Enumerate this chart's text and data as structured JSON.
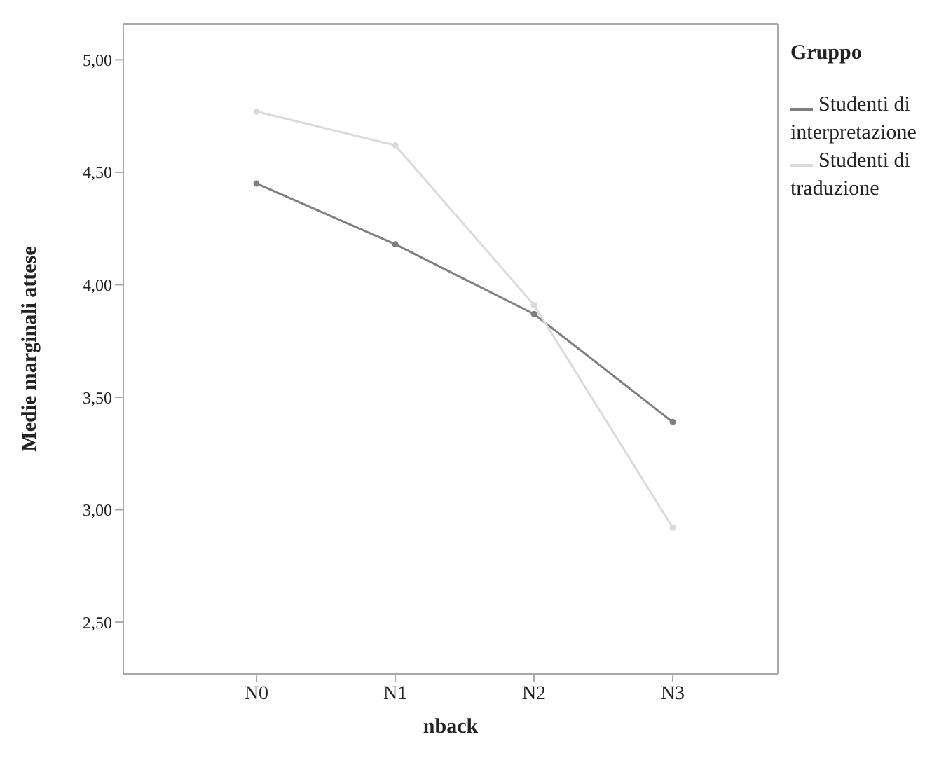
{
  "chart_data": {
    "type": "line",
    "xlabel": "nback",
    "ylabel": "Medie marginali attese",
    "legend_title": "Gruppo",
    "categories": [
      "N0",
      "N1",
      "N2",
      "N3"
    ],
    "series": [
      {
        "name": "Studenti di interpretazione",
        "color": "#7f7f7f",
        "values": [
          4.45,
          4.18,
          3.87,
          3.39
        ]
      },
      {
        "name": "Studenti di traduzione",
        "color": "#dadada",
        "values": [
          4.77,
          4.62,
          3.91,
          2.92
        ]
      }
    ],
    "ylim": [
      2.27,
      5.16
    ],
    "yticks": [
      {
        "value": 2.5,
        "label": "2,50"
      },
      {
        "value": 3,
        "label": "3,00"
      },
      {
        "value": 3.5,
        "label": "3,50"
      },
      {
        "value": 4,
        "label": "4,00"
      },
      {
        "value": 4.5,
        "label": "4,50"
      },
      {
        "value": 5,
        "label": "5,00"
      }
    ],
    "grid": false,
    "legend": "top right",
    "marker": "circle",
    "line_style": "solid"
  }
}
